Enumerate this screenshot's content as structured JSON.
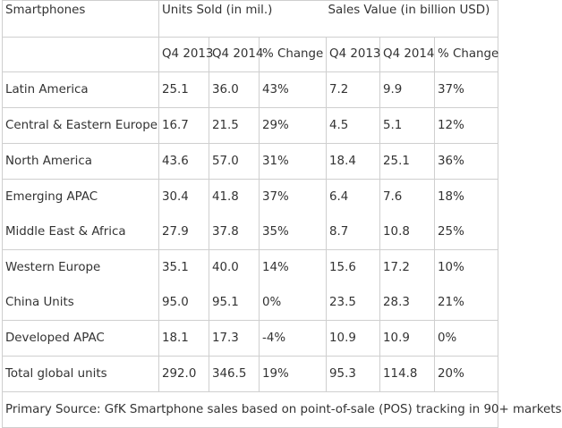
{
  "header": {
    "category": "Smartphones",
    "units_group": "Units Sold (in mil.)",
    "sales_group": "Sales Value (in billion USD)"
  },
  "subheader": {
    "units": [
      "Q4 2013",
      "Q4 2014",
      "% Change"
    ],
    "sales": [
      "Q4 2013",
      "Q4 2014",
      "% Change"
    ]
  },
  "rows": [
    {
      "region": "Latin America",
      "u13": "25.1",
      "u14": "36.0",
      "uchg": "43%",
      "s13": "7.2",
      "s14": "9.9",
      "schg": "37%"
    },
    {
      "region": "Central & Eastern Europe",
      "u13": "16.7",
      "u14": "21.5",
      "uchg": "29%",
      "s13": "4.5",
      "s14": "5.1",
      "schg": "12%"
    },
    {
      "region": "North America",
      "u13": "43.6",
      "u14": "57.0",
      "uchg": "31%",
      "s13": "18.4",
      "s14": "25.1",
      "schg": "36%"
    },
    {
      "region": "Emerging APAC",
      "u13": "30.4",
      "u14": "41.8",
      "uchg": "37%",
      "s13": "6.4",
      "s14": "7.6",
      "schg": "18%"
    },
    {
      "region": "Middle East & Africa",
      "u13": "27.9",
      "u14": "37.8",
      "uchg": "35%",
      "s13": "8.7",
      "s14": "10.8",
      "schg": "25%"
    },
    {
      "region": "Western Europe",
      "u13": "35.1",
      "u14": "40.0",
      "uchg": "14%",
      "s13": "15.6",
      "s14": "17.2",
      "schg": "10%"
    },
    {
      "region": "China Units",
      "u13": "95.0",
      "u14": "95.1",
      "uchg": "0%",
      "s13": "23.5",
      "s14": "28.3",
      "schg": "21%"
    },
    {
      "region": "Developed APAC",
      "u13": "18.1",
      "u14": "17.3",
      "uchg": "-4%",
      "s13": "10.9",
      "s14": "10.9",
      "schg": "0%"
    },
    {
      "region": "Total global units",
      "u13": "292.0",
      "u14": "346.5",
      "uchg": "19%",
      "s13": "95.3",
      "s14": "114.8",
      "schg": "20%"
    }
  ],
  "source": "Primary Source: GfK Smartphone sales based on point-of-sale (POS) tracking in 90+ markets"
}
